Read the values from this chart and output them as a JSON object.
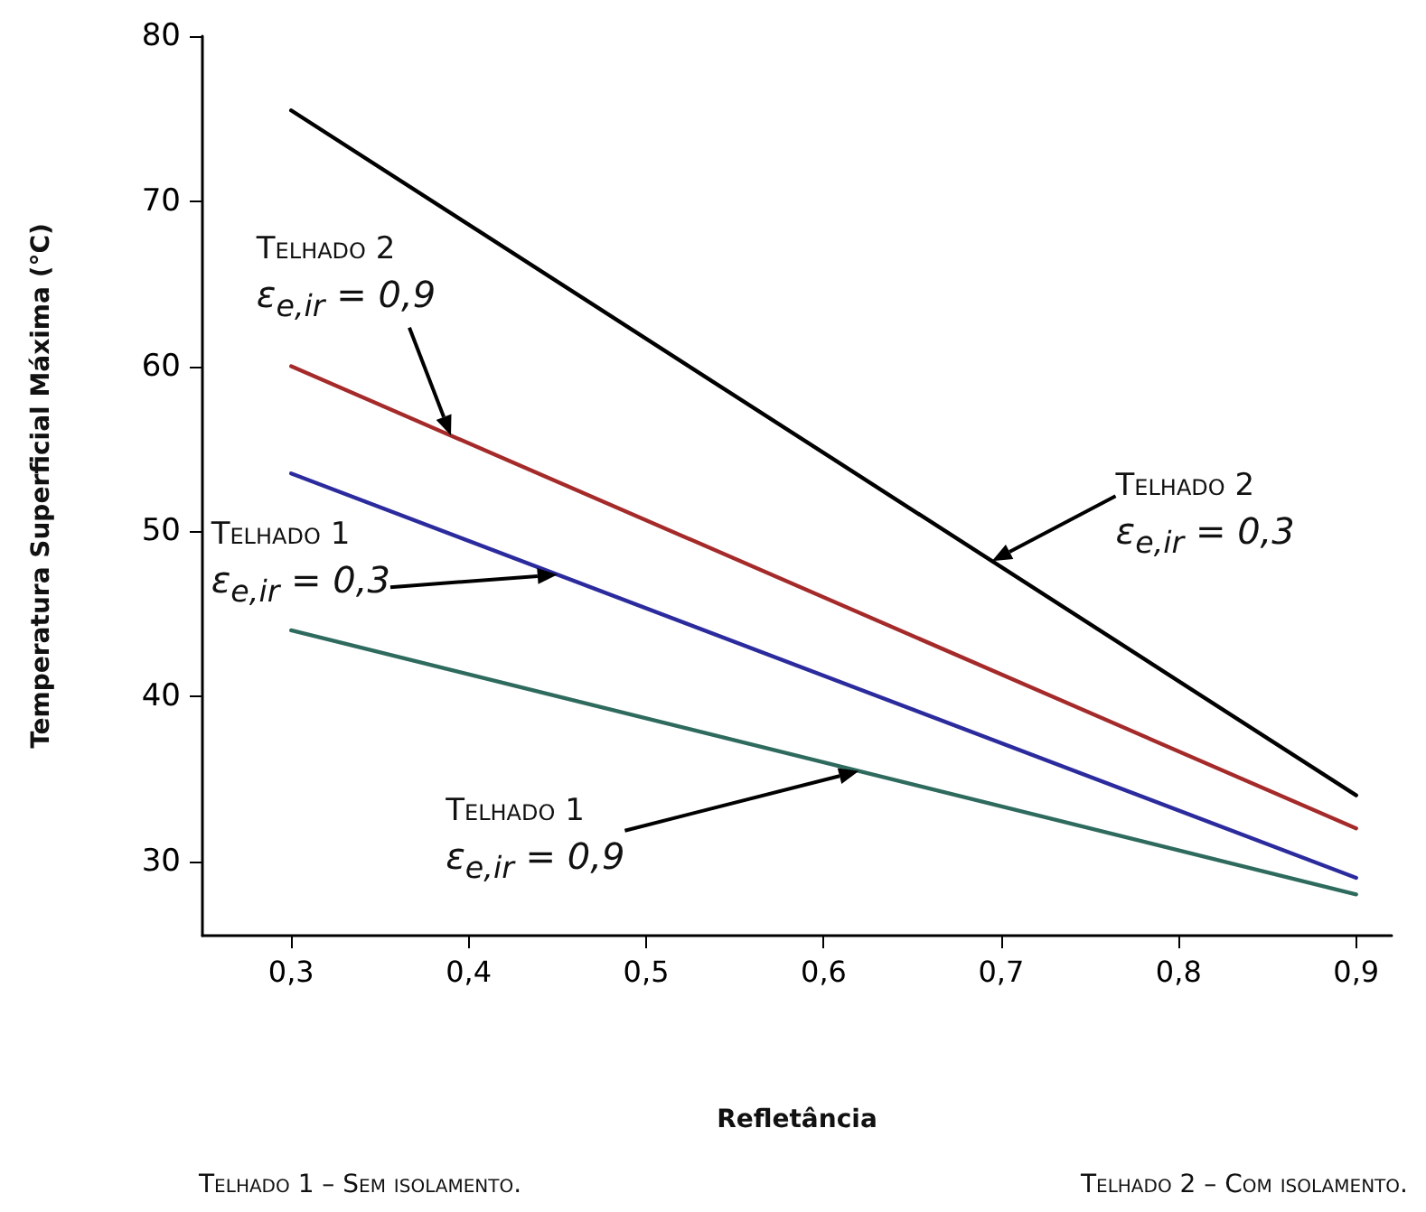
{
  "chart_data": {
    "type": "line",
    "xlabel": "Refletância",
    "ylabel": "Temperatura Superficial Máxima (°C)",
    "x": [
      0.3,
      0.9
    ],
    "series": [
      {
        "color": "#000000",
        "values": [
          75.5,
          34
        ]
      },
      {
        "color": "#a52a2a",
        "values": [
          60,
          32
        ]
      },
      {
        "color": "#2b2b9e",
        "values": [
          53.5,
          29
        ]
      },
      {
        "color": "#2e6b5e",
        "values": [
          44,
          28
        ]
      }
    ],
    "xlim": [
      0.25,
      0.92
    ],
    "xticks": [
      {
        "value": 0.3,
        "label": "0,3"
      },
      {
        "value": 0.4,
        "label": "0,4"
      },
      {
        "value": 0.5,
        "label": "0,5"
      },
      {
        "value": 0.6,
        "label": "0,6"
      },
      {
        "value": 0.7,
        "label": "0,7"
      },
      {
        "value": 0.8,
        "label": "0,8"
      },
      {
        "value": 0.9,
        "label": "0,9"
      }
    ],
    "ylim": [
      25.5,
      80
    ],
    "yticks": [
      30,
      40,
      50,
      60,
      70,
      80
    ],
    "grid": false,
    "line_style": "solid",
    "annotations": [
      "Telhado 2\nε$_{e,ir}$ = 0,9",
      "Telhado 2\nε$_{e,ir}$ = 0,3",
      "Telhado 1\nε$_{e,ir}$ = 0,3",
      "Telhado 1\nε$_{e,ir}$ = 0,9",
      "Telhado 1 – Sem isolamento.",
      "Telhado 2 – Com isolamento."
    ]
  }
}
